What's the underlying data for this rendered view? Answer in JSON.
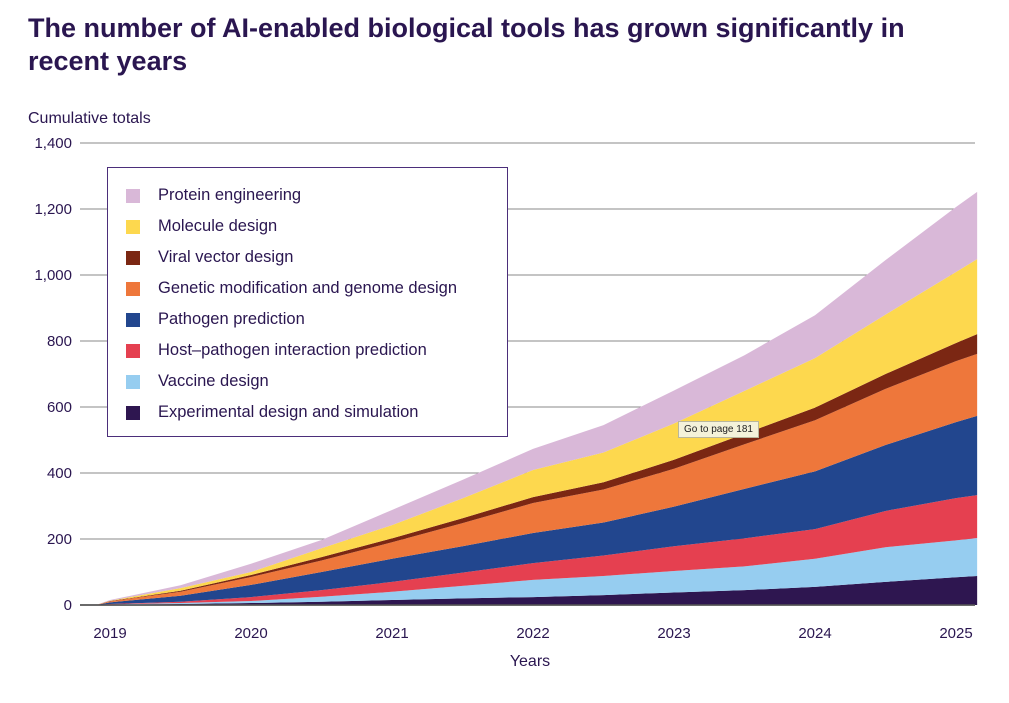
{
  "chart_data": {
    "type": "area",
    "stacked": true,
    "title": "The number of AI-enabled biological tools has grown significantly in recent years",
    "ylabel": "Cumulative totals",
    "xlabel": "Years",
    "ylim": [
      0,
      1400
    ],
    "yticks": [
      "0",
      "200",
      "400",
      "600",
      "800",
      "1,000",
      "1,200",
      "1,400"
    ],
    "ytick_values": [
      0,
      200,
      400,
      600,
      800,
      1000,
      1200,
      1400
    ],
    "xticks": [
      "2019",
      "2020",
      "2021",
      "2022",
      "2023",
      "2024",
      "2025"
    ],
    "xtick_values": [
      2019,
      2020,
      2021,
      2022,
      2023,
      2024,
      2025
    ],
    "grid": true,
    "legend_position": "top-left",
    "x": [
      2018.9,
      2019,
      2019.5,
      2020,
      2020.5,
      2021,
      2021.5,
      2022,
      2022.5,
      2023,
      2023.5,
      2024,
      2024.5,
      2025,
      2025.15
    ],
    "series": [
      {
        "name": "Experimental design and simulation",
        "color": "#2e1650",
        "values": [
          0,
          1,
          3,
          6,
          10,
          15,
          20,
          24,
          30,
          38,
          45,
          55,
          70,
          84,
          88
        ]
      },
      {
        "name": "Vaccine design",
        "color": "#96cdf0",
        "values": [
          0,
          1,
          3,
          6,
          15,
          25,
          38,
          52,
          58,
          65,
          72,
          85,
          105,
          112,
          115
        ]
      },
      {
        "name": "Host–pathogen interaction prediction",
        "color": "#e54050",
        "values": [
          0,
          1,
          4,
          12,
          20,
          30,
          40,
          51,
          62,
          75,
          85,
          90,
          110,
          128,
          130
        ]
      },
      {
        "name": "Pathogen prediction",
        "color": "#22468e",
        "values": [
          0,
          5,
          18,
          37,
          55,
          70,
          80,
          91,
          100,
          120,
          150,
          175,
          200,
          230,
          240
        ]
      },
      {
        "name": "Genetic modification and genome design",
        "color": "#ee773b",
        "values": [
          0,
          3,
          12,
          24,
          35,
          50,
          70,
          91,
          100,
          115,
          135,
          155,
          170,
          185,
          188
        ]
      },
      {
        "name": "Viral vector design",
        "color": "#7b2713",
        "values": [
          0,
          1,
          3,
          6,
          10,
          12,
          15,
          18,
          22,
          27,
          32,
          38,
          45,
          55,
          60
        ]
      },
      {
        "name": "Molecule design",
        "color": "#fdd84e",
        "values": [
          0,
          1,
          8,
          9,
          27,
          40,
          60,
          82,
          90,
          110,
          130,
          150,
          180,
          215,
          227
        ]
      },
      {
        "name": "Protein engineering",
        "color": "#d9b8d8",
        "values": [
          0,
          2,
          9,
          25,
          25,
          46,
          56,
          64,
          83,
          100,
          108,
          130,
          165,
          197,
          204
        ]
      }
    ],
    "legend_order": [
      "Protein engineering",
      "Molecule design",
      "Viral vector design",
      "Genetic modification and genome design",
      "Pathogen prediction",
      "Host–pathogen interaction prediction",
      "Vaccine design",
      "Experimental design and simulation"
    ]
  },
  "tooltip": "Go to page 181"
}
